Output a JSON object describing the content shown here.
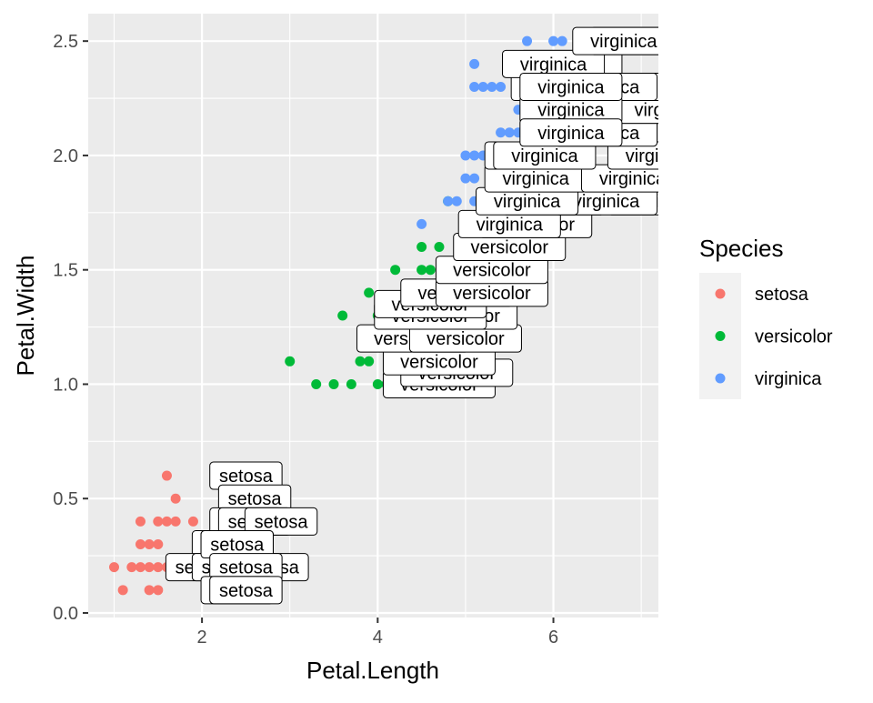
{
  "chart_data": {
    "type": "scatter",
    "xlabel": "Petal.Length",
    "ylabel": "Petal.Width",
    "xlim": [
      0.705,
      7.195
    ],
    "ylim": [
      -0.02,
      2.62
    ],
    "x_ticks": [
      2,
      4,
      6
    ],
    "y_ticks": [
      0.0,
      0.5,
      1.0,
      1.5,
      2.0,
      2.5
    ],
    "x_tick_labels": [
      "2",
      "4",
      "6"
    ],
    "y_tick_labels": [
      "0.0",
      "0.5",
      "1.0",
      "1.5",
      "2.0",
      "2.5"
    ],
    "grid": true,
    "background": "#ebebeb",
    "legend": {
      "title": "Species",
      "placement": "right",
      "entries": [
        {
          "label": "setosa",
          "color": "#f8766d"
        },
        {
          "label": "versicolor",
          "color": "#00ba38"
        },
        {
          "label": "virginica",
          "color": "#619cff"
        }
      ]
    },
    "series": [
      {
        "name": "setosa",
        "color": "#f8766d",
        "points": [
          [
            1.0,
            0.2
          ],
          [
            1.1,
            0.1
          ],
          [
            1.2,
            0.2
          ],
          [
            1.3,
            0.2
          ],
          [
            1.4,
            0.2
          ],
          [
            1.5,
            0.2
          ],
          [
            1.6,
            0.2
          ],
          [
            1.7,
            0.2
          ],
          [
            1.9,
            0.2
          ],
          [
            1.3,
            0.3
          ],
          [
            1.4,
            0.3
          ],
          [
            1.5,
            0.3
          ],
          [
            1.3,
            0.4
          ],
          [
            1.5,
            0.4
          ],
          [
            1.6,
            0.4
          ],
          [
            1.7,
            0.4
          ],
          [
            1.9,
            0.4
          ],
          [
            1.4,
            0.1
          ],
          [
            1.5,
            0.1
          ],
          [
            1.6,
            0.6
          ],
          [
            1.7,
            0.5
          ]
        ]
      },
      {
        "name": "versicolor",
        "color": "#00ba38",
        "points": [
          [
            3.0,
            1.1
          ],
          [
            3.3,
            1.0
          ],
          [
            3.5,
            1.0
          ],
          [
            3.7,
            1.0
          ],
          [
            3.9,
            1.1
          ],
          [
            3.6,
            1.3
          ],
          [
            3.8,
            1.1
          ],
          [
            3.9,
            1.2
          ],
          [
            4.0,
            1.0
          ],
          [
            4.0,
            1.2
          ],
          [
            4.0,
            1.3
          ],
          [
            4.1,
            1.0
          ],
          [
            4.1,
            1.3
          ],
          [
            4.2,
            1.2
          ],
          [
            4.2,
            1.5
          ],
          [
            4.3,
            1.3
          ],
          [
            4.4,
            1.2
          ],
          [
            4.4,
            1.4
          ],
          [
            4.5,
            1.3
          ],
          [
            4.5,
            1.5
          ],
          [
            4.6,
            1.4
          ],
          [
            4.6,
            1.5
          ],
          [
            4.7,
            1.4
          ],
          [
            4.7,
            1.6
          ],
          [
            4.8,
            1.8
          ],
          [
            4.9,
            1.5
          ],
          [
            5.0,
            1.7
          ],
          [
            5.1,
            1.6
          ],
          [
            4.5,
            1.6
          ],
          [
            3.9,
            1.4
          ]
        ]
      },
      {
        "name": "virginica",
        "color": "#619cff",
        "points": [
          [
            4.5,
            1.7
          ],
          [
            4.8,
            1.8
          ],
          [
            4.9,
            1.8
          ],
          [
            5.0,
            2.0
          ],
          [
            5.1,
            2.0
          ],
          [
            5.2,
            2.0
          ],
          [
            5.0,
            1.9
          ],
          [
            5.1,
            1.9
          ],
          [
            5.3,
            1.9
          ],
          [
            5.4,
            2.1
          ],
          [
            5.5,
            2.1
          ],
          [
            5.6,
            2.1
          ],
          [
            5.1,
            1.8
          ],
          [
            5.6,
            1.8
          ],
          [
            5.7,
            2.1
          ],
          [
            5.8,
            2.2
          ],
          [
            5.6,
            2.2
          ],
          [
            5.8,
            2.1
          ],
          [
            5.1,
            2.3
          ],
          [
            5.2,
            2.3
          ],
          [
            5.3,
            2.3
          ],
          [
            5.4,
            2.3
          ],
          [
            5.1,
            2.4
          ],
          [
            5.7,
            2.5
          ],
          [
            6.0,
            2.5
          ],
          [
            6.1,
            2.5
          ],
          [
            5.6,
            2.4
          ],
          [
            6.1,
            2.3
          ],
          [
            6.0,
            1.8
          ]
        ]
      }
    ],
    "labels": [
      {
        "text": "setosa",
        "x": 2.5,
        "y": 0.6,
        "series": "setosa"
      },
      {
        "text": "setosa",
        "x": 2.6,
        "y": 0.5,
        "series": "setosa"
      },
      {
        "text": "setosa",
        "x": 2.5,
        "y": 0.4,
        "series": "setosa"
      },
      {
        "text": "setosa",
        "x": 2.6,
        "y": 0.4,
        "series": "setosa"
      },
      {
        "text": "setosa",
        "x": 2.9,
        "y": 0.4,
        "series": "setosa"
      },
      {
        "text": "setosa",
        "x": 2.3,
        "y": 0.3,
        "series": "setosa"
      },
      {
        "text": "setosa",
        "x": 2.4,
        "y": 0.3,
        "series": "setosa"
      },
      {
        "text": "setosa",
        "x": 2.8,
        "y": 0.2,
        "series": "setosa"
      },
      {
        "text": "setosa",
        "x": 2.0,
        "y": 0.2,
        "series": "setosa"
      },
      {
        "text": "setosa",
        "x": 2.3,
        "y": 0.2,
        "series": "setosa"
      },
      {
        "text": "setosa",
        "x": 2.4,
        "y": 0.3,
        "series": "setosa"
      },
      {
        "text": "setosa",
        "x": 2.5,
        "y": 0.2,
        "series": "setosa"
      },
      {
        "text": "setosa",
        "x": 2.4,
        "y": 0.1,
        "series": "setosa"
      },
      {
        "text": "setosa",
        "x": 2.5,
        "y": 0.1,
        "series": "setosa"
      },
      {
        "text": "versicolor",
        "x": 4.7,
        "y": 1.0,
        "series": "versicolor"
      },
      {
        "text": "versicolor",
        "x": 4.9,
        "y": 1.05,
        "series": "versicolor"
      },
      {
        "text": "versicolor",
        "x": 4.7,
        "y": 1.1,
        "series": "versicolor"
      },
      {
        "text": "versicolor",
        "x": 4.4,
        "y": 1.2,
        "series": "versicolor"
      },
      {
        "text": "versicolor",
        "x": 5.0,
        "y": 1.2,
        "series": "versicolor"
      },
      {
        "text": "versicolor",
        "x": 4.95,
        "y": 1.3,
        "series": "versicolor"
      },
      {
        "text": "versicolor",
        "x": 4.6,
        "y": 1.3,
        "series": "versicolor"
      },
      {
        "text": "versicolor",
        "x": 4.6,
        "y": 1.35,
        "series": "versicolor"
      },
      {
        "text": "versicolor",
        "x": 4.9,
        "y": 1.4,
        "series": "versicolor"
      },
      {
        "text": "versicolor",
        "x": 5.3,
        "y": 1.4,
        "series": "versicolor"
      },
      {
        "text": "versicolor",
        "x": 5.3,
        "y": 1.5,
        "series": "versicolor"
      },
      {
        "text": "versicolor",
        "x": 5.5,
        "y": 1.6,
        "series": "versicolor"
      },
      {
        "text": "versicolor",
        "x": 5.8,
        "y": 1.7,
        "series": "versicolor"
      },
      {
        "text": "virginica",
        "x": 5.5,
        "y": 1.7,
        "series": "virginica"
      },
      {
        "text": "virginica",
        "x": 6.0,
        "y": 1.8,
        "series": "virginica"
      },
      {
        "text": "virginica",
        "x": 7.2,
        "y": 1.8,
        "series": "virginica"
      },
      {
        "text": "virginica",
        "x": 6.6,
        "y": 1.8,
        "series": "virginica"
      },
      {
        "text": "virginica",
        "x": 5.7,
        "y": 1.8,
        "series": "virginica"
      },
      {
        "text": "virginica",
        "x": 5.8,
        "y": 1.9,
        "series": "virginica"
      },
      {
        "text": "virginica",
        "x": 6.9,
        "y": 1.9,
        "series": "virginica"
      },
      {
        "text": "virginica",
        "x": 5.8,
        "y": 2.0,
        "series": "virginica"
      },
      {
        "text": "virginica",
        "x": 5.9,
        "y": 2.0,
        "series": "virginica"
      },
      {
        "text": "virginica",
        "x": 7.2,
        "y": 2.0,
        "series": "virginica"
      },
      {
        "text": "virginica",
        "x": 6.6,
        "y": 2.1,
        "series": "virginica"
      },
      {
        "text": "virginica",
        "x": 6.7,
        "y": 2.2,
        "series": "virginica"
      },
      {
        "text": "virginica",
        "x": 7.3,
        "y": 2.2,
        "series": "virginica"
      },
      {
        "text": "virginica",
        "x": 6.1,
        "y": 2.3,
        "series": "virginica"
      },
      {
        "text": "virginica",
        "x": 6.2,
        "y": 2.4,
        "series": "virginica"
      },
      {
        "text": "virginica",
        "x": 6.0,
        "y": 2.4,
        "series": "virginica"
      },
      {
        "text": "virginica",
        "x": 6.7,
        "y": 2.3,
        "series": "virginica"
      },
      {
        "text": "virginica",
        "x": 6.6,
        "y": 2.3,
        "series": "virginica"
      },
      {
        "text": "virginica",
        "x": 6.2,
        "y": 2.2,
        "series": "virginica"
      },
      {
        "text": "virginica",
        "x": 6.2,
        "y": 2.1,
        "series": "virginica"
      },
      {
        "text": "virginica",
        "x": 6.2,
        "y": 2.3,
        "series": "virginica"
      },
      {
        "text": "virginica",
        "x": 7.0,
        "y": 2.5,
        "series": "virginica"
      },
      {
        "text": "virginica",
        "x": 6.8,
        "y": 2.5,
        "series": "virginica"
      }
    ]
  }
}
